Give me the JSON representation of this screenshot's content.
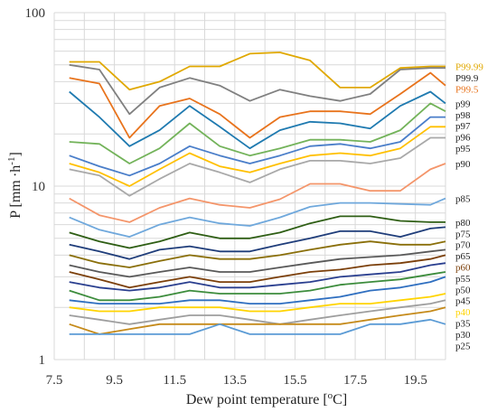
{
  "chart_data": {
    "type": "line",
    "xlabel": "Dew point temperature [",
    "xlabel_unit_sup": "o",
    "xlabel_unit": "C]",
    "ylabel": "P [mm ·h",
    "ylabel_sup": "-1",
    "ylabel_end": "]",
    "y_scale": "log",
    "xlim": [
      7.5,
      20.5
    ],
    "ylim": [
      1,
      100
    ],
    "grid": true,
    "x_ticks": [
      "7.5",
      "9.5",
      "11.5",
      "13.5",
      "15.5",
      "17.5",
      "19.5"
    ],
    "y_ticks": [
      "1",
      "10",
      "100"
    ],
    "x": [
      8,
      9,
      10,
      11,
      12,
      13,
      14,
      15,
      16,
      17,
      18,
      19,
      20,
      20.5
    ],
    "series": [
      {
        "name": "P99.99",
        "color": "#e0a800",
        "values": [
          52,
          52,
          36,
          40,
          49,
          49,
          58,
          59,
          53,
          37,
          37,
          48,
          49,
          49
        ]
      },
      {
        "name": "P99.9",
        "color": "#808080",
        "values": [
          50,
          47,
          26,
          37,
          42,
          38,
          31,
          36,
          33,
          31,
          34,
          47,
          48,
          48
        ]
      },
      {
        "name": "P99.5",
        "color": "#e8731c",
        "values": [
          42,
          39,
          19,
          29,
          32,
          26,
          19,
          25,
          27,
          27,
          26,
          34,
          45,
          38
        ]
      },
      {
        "name": "p99",
        "color": "#1f7ab0",
        "values": [
          35,
          25,
          17,
          21,
          29,
          22,
          16.5,
          21,
          23.5,
          23,
          21.5,
          29,
          35,
          30
        ]
      },
      {
        "name": "p98",
        "color": "#73b35a",
        "values": [
          18,
          17.5,
          13.5,
          16.5,
          23,
          17,
          15,
          16.5,
          18.5,
          18.5,
          18,
          21,
          30,
          27
        ]
      },
      {
        "name": "p97",
        "color": "#4a7ec9",
        "values": [
          15,
          13,
          11.5,
          13.5,
          17,
          15,
          13.5,
          15,
          17,
          17.5,
          16.5,
          18,
          25,
          25
        ]
      },
      {
        "name": "p96",
        "color": "#ffc000",
        "values": [
          13.5,
          12,
          10,
          12.5,
          15.5,
          13,
          12,
          13.5,
          15,
          15.5,
          15,
          16.5,
          22,
          22
        ]
      },
      {
        "name": "p95",
        "color": "#a9a9a9",
        "values": [
          12.5,
          11.5,
          8.8,
          11,
          13.5,
          12,
          10.5,
          12.5,
          14,
          14,
          13.5,
          14.5,
          19,
          19
        ]
      },
      {
        "name": "p90",
        "color": "#f4956a",
        "values": [
          8.5,
          6.8,
          6.2,
          7.5,
          8.5,
          7.8,
          7.5,
          8.4,
          10.3,
          10.3,
          9.4,
          9.4,
          12.5,
          13.5
        ]
      },
      {
        "name": "p85",
        "color": "#6fa8dc",
        "values": [
          6.6,
          5.6,
          5.1,
          6,
          6.6,
          6.1,
          5.9,
          6.6,
          7.6,
          8,
          8,
          7.9,
          7.8,
          8.5
        ]
      },
      {
        "name": "p80",
        "color": "#2e5e14",
        "values": [
          5.4,
          4.8,
          4.4,
          4.8,
          5.4,
          5,
          5,
          5.4,
          6.1,
          6.7,
          6.7,
          6.3,
          6.2,
          6.2
        ]
      },
      {
        "name": "p75",
        "color": "#1f3d7a",
        "values": [
          4.6,
          4.2,
          3.8,
          4.3,
          4.5,
          4.2,
          4.2,
          4.6,
          5,
          5.5,
          5.5,
          5.1,
          5.7,
          5.8
        ]
      },
      {
        "name": "p70",
        "color": "#8a6f0a",
        "values": [
          4,
          3.6,
          3.4,
          3.7,
          4,
          3.8,
          3.8,
          4,
          4.3,
          4.6,
          4.8,
          4.6,
          4.6,
          4.8
        ]
      },
      {
        "name": "p65",
        "color": "#595959",
        "values": [
          3.5,
          3.2,
          3,
          3.2,
          3.4,
          3.2,
          3.2,
          3.4,
          3.6,
          3.8,
          3.9,
          4,
          4.2,
          4.3
        ]
      },
      {
        "name": "p60",
        "color": "#7b3f0a",
        "values": [
          3.2,
          2.9,
          2.6,
          2.8,
          3,
          2.8,
          2.8,
          3,
          3.2,
          3.3,
          3.5,
          3.6,
          3.8,
          4
        ]
      },
      {
        "name": "p55",
        "color": "#2a3f8f",
        "values": [
          2.8,
          2.6,
          2.5,
          2.6,
          2.8,
          2.6,
          2.6,
          2.7,
          2.8,
          3,
          3.1,
          3.2,
          3.5,
          3.6
        ]
      },
      {
        "name": "p50",
        "color": "#3c8c3c",
        "values": [
          2.5,
          2.2,
          2.2,
          2.3,
          2.5,
          2.4,
          2.4,
          2.4,
          2.5,
          2.7,
          2.8,
          2.9,
          3.1,
          3.2
        ]
      },
      {
        "name": "p45",
        "color": "#2f6fc0",
        "values": [
          2.2,
          2.1,
          2.1,
          2.1,
          2.2,
          2.2,
          2.1,
          2.1,
          2.2,
          2.3,
          2.5,
          2.6,
          2.8,
          3
        ]
      },
      {
        "name": "p40",
        "color": "#ffd400",
        "values": [
          2,
          1.9,
          1.9,
          2,
          2,
          2,
          1.9,
          1.9,
          2,
          2.1,
          2.1,
          2.2,
          2.3,
          2.4
        ]
      },
      {
        "name": "p35",
        "color": "#9e9e9e",
        "values": [
          1.8,
          1.7,
          1.6,
          1.7,
          1.8,
          1.8,
          1.7,
          1.6,
          1.7,
          1.8,
          1.9,
          2,
          2.1,
          2.2
        ]
      },
      {
        "name": "p30",
        "color": "#c58a1a",
        "values": [
          1.6,
          1.4,
          1.5,
          1.6,
          1.6,
          1.6,
          1.6,
          1.6,
          1.6,
          1.6,
          1.7,
          1.8,
          1.9,
          2
        ]
      },
      {
        "name": "p25",
        "color": "#5b9bd5",
        "values": [
          1.4,
          1.4,
          1.4,
          1.4,
          1.4,
          1.6,
          1.4,
          1.4,
          1.4,
          1.4,
          1.6,
          1.6,
          1.7,
          1.6
        ]
      }
    ]
  }
}
